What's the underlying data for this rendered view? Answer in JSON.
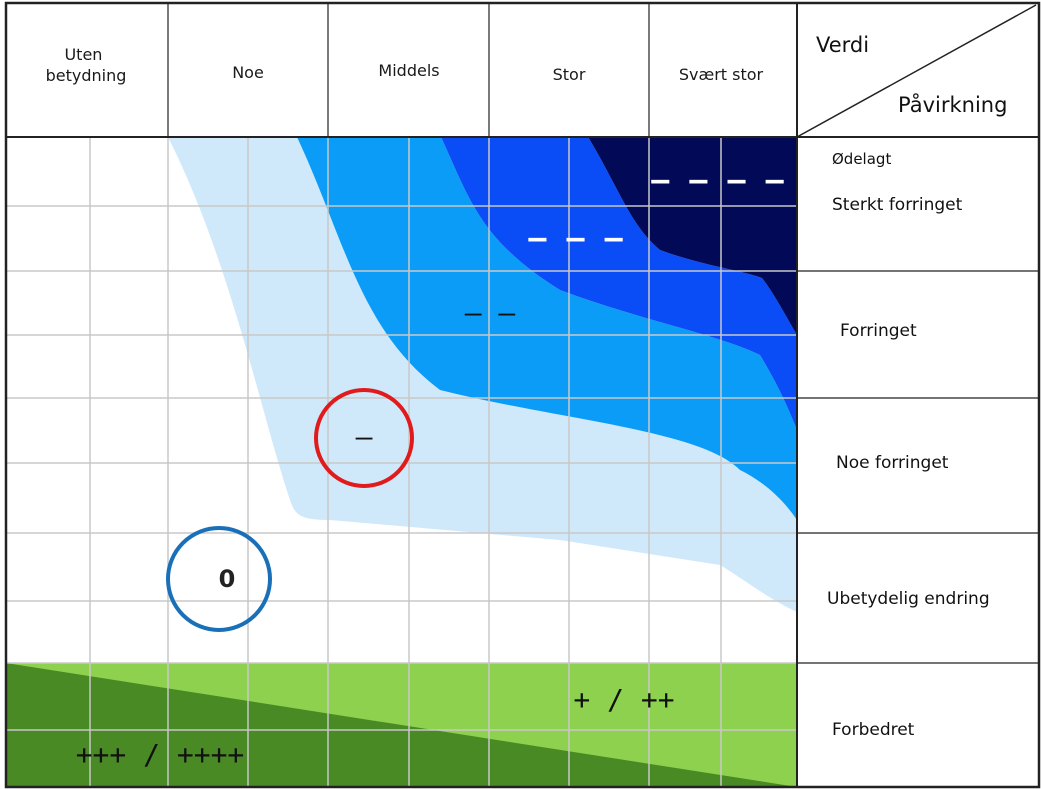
{
  "columns": [
    "Uten betydning",
    "Noe",
    "Middels",
    "Stor",
    "Svært stor"
  ],
  "corner": {
    "top": "Verdi",
    "bottom": "Påvirkning"
  },
  "rows": [
    "Ødelagt",
    "Sterkt forringet",
    "Forringet",
    "Noe forringet",
    "Ubetydelig endring",
    "Forbedret"
  ],
  "symbols": {
    "very_negative": "– – – –",
    "strongly_negative": "– – –",
    "negative": "– –",
    "slightly_negative": "–",
    "neutral": "0",
    "positive": "+ / ++",
    "very_positive": "+++ / ++++"
  },
  "colors": {
    "zone_light_blue": "#cfe9fb",
    "zone_mid_blue": "#0b9cf7",
    "zone_blue": "#0a4cf5",
    "zone_dark_blue": "#020a57",
    "zone_light_green": "#8ed14e",
    "zone_dark_green": "#4a8a25",
    "circle_red": "#e11b1b",
    "circle_blue": "#1a70b8",
    "grid_line": "#c8c8c8",
    "border": "#222222"
  }
}
